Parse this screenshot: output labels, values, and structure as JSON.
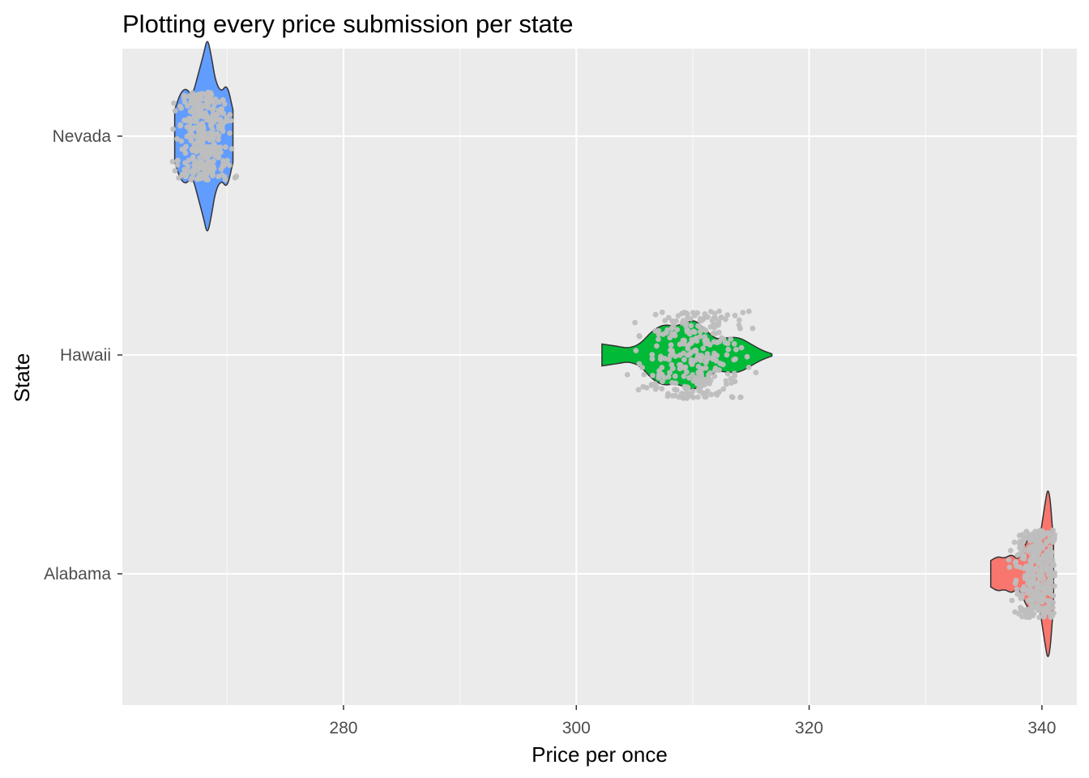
{
  "chart_data": {
    "type": "violin",
    "title": "Plotting every price submission per state",
    "xlabel": "Price per once",
    "ylabel": "State",
    "xlim": [
      261,
      343
    ],
    "x_ticks": [
      280,
      300,
      320,
      340
    ],
    "x_tick_labels": [
      "280",
      "300",
      "320",
      "340"
    ],
    "categories": [
      "Alabama",
      "Hawaii",
      "Nevada"
    ],
    "grid": true,
    "legend": "none",
    "background": "#ebebeb",
    "grid_color": "#ffffff",
    "point_color": "#bebebe",
    "series": [
      {
        "category": "Nevada",
        "color": "#619cff",
        "range": [
          265.5,
          270.5
        ],
        "violin_profile": [
          [
            265.5,
            0.12
          ],
          [
            266,
            0.2
          ],
          [
            266.5,
            0.22
          ],
          [
            267,
            0.18
          ],
          [
            267.5,
            0.28
          ],
          [
            268,
            0.38
          ],
          [
            268.3,
            0.45
          ],
          [
            268.6,
            0.38
          ],
          [
            269,
            0.25
          ],
          [
            269.5,
            0.2
          ],
          [
            270,
            0.24
          ],
          [
            270.5,
            0.12
          ]
        ],
        "points": {
          "count": 340,
          "min": 265.3,
          "max": 270.8,
          "center": 268.0,
          "spread": 1.6
        }
      },
      {
        "category": "Hawaii",
        "color": "#00ba38",
        "range": [
          302.2,
          316.8
        ],
        "violin_profile": [
          [
            302.2,
            0.05
          ],
          [
            303.5,
            0.04
          ],
          [
            304.5,
            0.03
          ],
          [
            305.5,
            0.05
          ],
          [
            306.5,
            0.11
          ],
          [
            307.5,
            0.14
          ],
          [
            308.5,
            0.13
          ],
          [
            309.5,
            0.15
          ],
          [
            310.2,
            0.16
          ],
          [
            311,
            0.12
          ],
          [
            312,
            0.07
          ],
          [
            313,
            0.08
          ],
          [
            314,
            0.08
          ],
          [
            315,
            0.05
          ],
          [
            316,
            0.02
          ],
          [
            316.8,
            0.005
          ]
        ],
        "points": {
          "count": 300,
          "min": 302.3,
          "max": 316.8,
          "center": 310.0,
          "spread": 3.2
        }
      },
      {
        "category": "Alabama",
        "color": "#f8766d",
        "range": [
          335.6,
          341.0
        ],
        "violin_profile": [
          [
            335.6,
            0.06
          ],
          [
            336.2,
            0.08
          ],
          [
            336.8,
            0.07
          ],
          [
            337.4,
            0.09
          ],
          [
            338.0,
            0.06
          ],
          [
            338.6,
            0.14
          ],
          [
            339.1,
            0.18
          ],
          [
            339.7,
            0.12
          ],
          [
            340.2,
            0.3
          ],
          [
            340.6,
            0.42
          ],
          [
            341.0,
            0.14
          ]
        ],
        "points": {
          "count": 320,
          "min": 335.6,
          "max": 341.1,
          "center": 339.6,
          "spread": 1.5
        }
      }
    ]
  }
}
